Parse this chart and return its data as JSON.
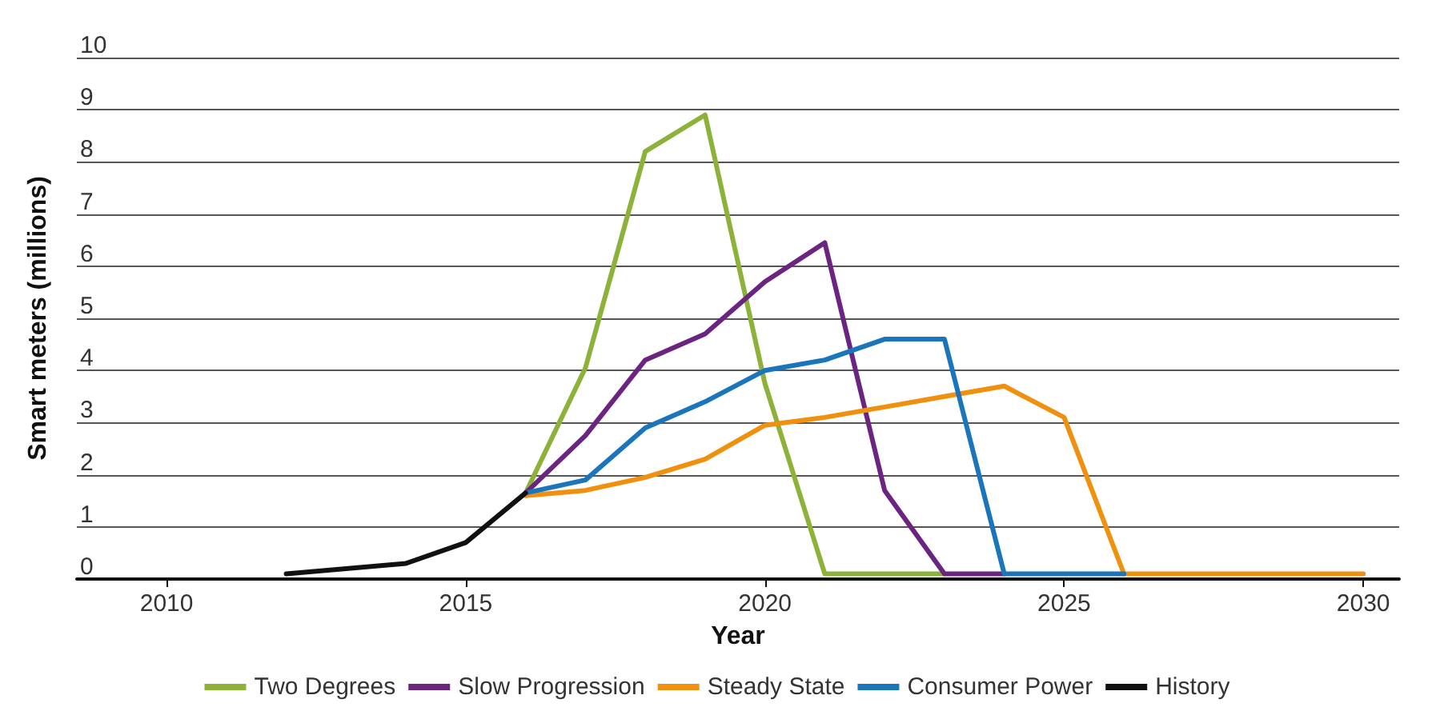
{
  "chart_data": {
    "type": "line",
    "xlabel": "Year",
    "ylabel": "Smart meters (millions)",
    "xlim": [
      2008.5,
      2030.6
    ],
    "xticks": [
      2010,
      2015,
      2020,
      2025,
      2030
    ],
    "ylim": [
      0,
      10
    ],
    "yticks": [
      0,
      1,
      2,
      3,
      4,
      5,
      6,
      7,
      8,
      9,
      10
    ],
    "grid": "y",
    "legend": "bottom",
    "marker": "none",
    "line_style": "solid",
    "series": [
      {
        "name": "Two Degrees",
        "color": "#8cb23a",
        "x": [
          2016,
          2017,
          2018,
          2019,
          2020,
          2021,
          2022,
          2023
        ],
        "values": [
          1.65,
          4.05,
          8.2,
          8.9,
          3.75,
          0.1,
          0.1,
          0.1
        ]
      },
      {
        "name": "Slow Progression",
        "color": "#6b2480",
        "x": [
          2016,
          2017,
          2018,
          2019,
          2020,
          2021,
          2022,
          2023,
          2024
        ],
        "values": [
          1.65,
          2.75,
          4.2,
          4.7,
          5.7,
          6.45,
          1.7,
          0.1,
          0.1
        ]
      },
      {
        "name": "Steady State",
        "color": "#f0900f",
        "x": [
          2016,
          2017,
          2018,
          2019,
          2020,
          2021,
          2022,
          2023,
          2024,
          2025,
          2026,
          2027,
          2028,
          2029,
          2030
        ],
        "values": [
          1.6,
          1.7,
          1.95,
          2.3,
          2.95,
          3.1,
          3.3,
          3.5,
          3.7,
          3.1,
          0.1,
          0.1,
          0.1,
          0.1,
          0.1
        ]
      },
      {
        "name": "Consumer Power",
        "color": "#1a75bb",
        "x": [
          2016,
          2017,
          2018,
          2019,
          2020,
          2021,
          2022,
          2023,
          2024,
          2025,
          2026
        ],
        "values": [
          1.65,
          1.9,
          2.9,
          3.4,
          4.0,
          4.2,
          4.6,
          4.6,
          0.1,
          0.1,
          0.1
        ]
      },
      {
        "name": "History",
        "color": "#111111",
        "x": [
          2012,
          2013,
          2014,
          2015,
          2016
        ],
        "values": [
          0.1,
          0.2,
          0.3,
          0.7,
          1.65
        ]
      }
    ]
  }
}
